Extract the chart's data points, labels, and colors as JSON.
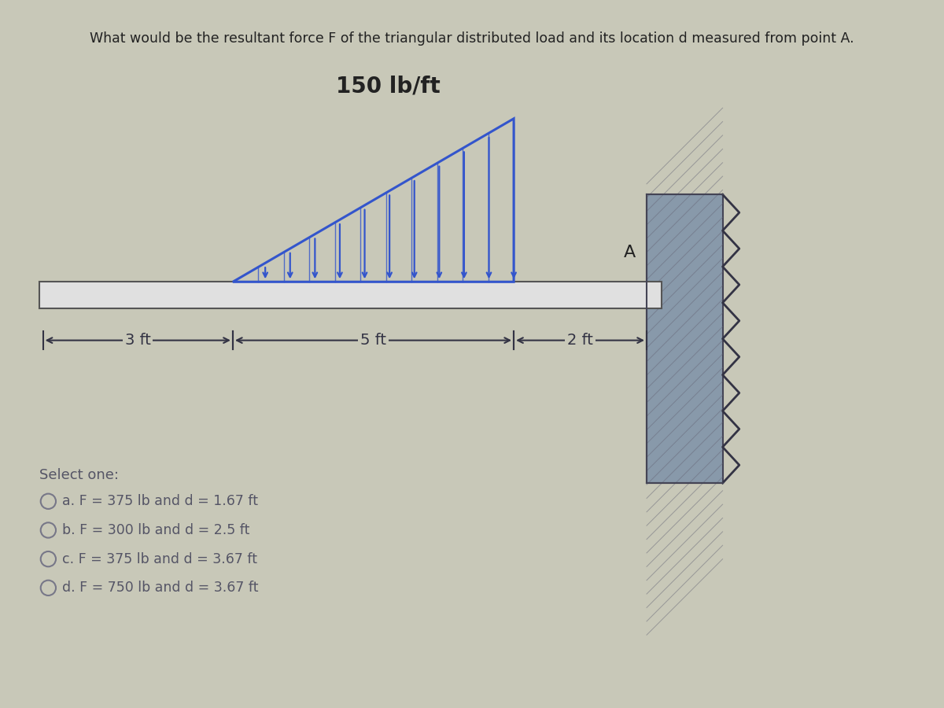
{
  "title": "What would be the resultant force F of the triangular distributed load and its location d measured from point A.",
  "load_label": "150 lb/ft",
  "bg_color": "#c8c8b8",
  "beam_color": "#e0e0e0",
  "beam_edge_color": "#555555",
  "load_color": "#3355cc",
  "wall_color": "#888898",
  "wall_fill": "#8899aa",
  "dim_color": "#333344",
  "text_color": "#222222",
  "dim_3ft": "3 ft",
  "dim_5ft": "5 ft",
  "dim_2ft": "2 ft",
  "point_label": "A",
  "select_one_text": "Select one:",
  "options": [
    "a. F = 375 lb and d = 1.67 ft",
    "b. F = 300 lb and d = 2.5 ft",
    "c. F = 375 lb and d = 3.67 ft",
    "d. F = 750 lb and d = 3.67 ft"
  ],
  "fig_width": 12,
  "fig_height": 9,
  "dpi": 100
}
